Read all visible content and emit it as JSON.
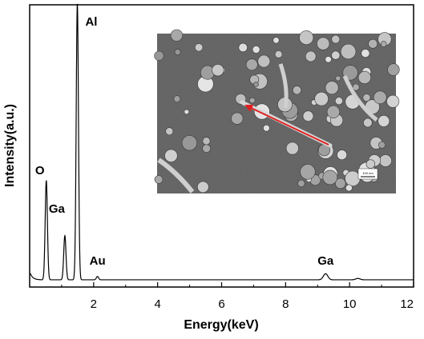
{
  "chart_data": {
    "type": "line",
    "title": "",
    "xlabel": "Energy(keV)",
    "ylabel": "Intensity(a.u.)",
    "xlim": [
      0,
      12
    ],
    "ylim": [
      0,
      100
    ],
    "x_ticks": [
      2,
      4,
      6,
      8,
      10,
      12
    ],
    "grid": false,
    "legend": "none",
    "line_color": "#000000",
    "series": [
      {
        "peaks": [
          {
            "element": "O",
            "energy": 0.52,
            "intensity": 36
          },
          {
            "element": "Ga",
            "energy": 1.1,
            "intensity": 16
          },
          {
            "element": "Al",
            "energy": 1.49,
            "intensity": 100
          },
          {
            "element": "Au",
            "energy": 2.12,
            "intensity": 1.2
          },
          {
            "element": "Ga",
            "energy": 9.25,
            "intensity": 2.2
          },
          {
            "element": "",
            "energy": 10.26,
            "intensity": 0.5
          }
        ]
      }
    ],
    "peak_labels": [
      {
        "text": "Al",
        "energy": 1.49
      },
      {
        "text": "O",
        "energy": 0.52
      },
      {
        "text": "Ga",
        "energy": 1.1
      },
      {
        "text": "Au",
        "energy": 2.12
      },
      {
        "text": "Ga",
        "energy": 9.25
      }
    ],
    "inset": {
      "content": "SEM micrograph",
      "scale_bar_label": "100 nm",
      "arrow_color": "#e02020"
    }
  }
}
